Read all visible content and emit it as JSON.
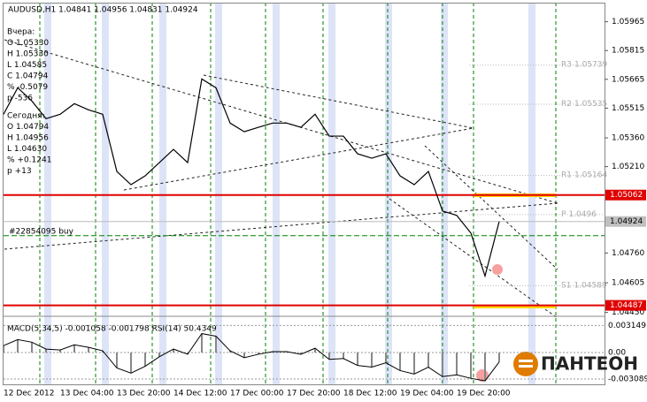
{
  "chart_data": {
    "type": "line",
    "title": "AUDUSD,H1 1.04841 1.04956 1.04831 1.04924",
    "info_yesterday": [
      "Вчера:",
      "O 1.05330",
      "H 1.05330",
      "L 1.04585",
      "C 1.04794",
      "% -0.5079",
      "p -536"
    ],
    "info_today": [
      "Сегодня:",
      "O 1.04794",
      "H 1.04956",
      "L 1.04630",
      "% +0.1241",
      "p +13"
    ],
    "categories": [
      "12 Dec 2012",
      null,
      null,
      null,
      "13 Dec 04:00",
      null,
      null,
      null,
      "13 Dec 20:00",
      null,
      null,
      null,
      "14 Dec 12:00",
      null,
      null,
      null,
      "17 Dec 00:00",
      null,
      null,
      null,
      "17 Dec 20:00",
      null,
      null,
      null,
      "18 Dec 12:00",
      null,
      null,
      null,
      "19 Dec 04:00",
      null,
      null,
      null,
      "19 Dec 20:00",
      null,
      null,
      null
    ],
    "series": [
      {
        "name": "AUDUSD",
        "color": "#000000",
        "values": [
          1.05483,
          1.05621,
          1.05552,
          1.0546,
          1.05483,
          1.05538,
          1.05506,
          1.05483,
          1.05185,
          1.05116,
          1.05162,
          1.05231,
          1.053,
          1.05231,
          1.05667,
          1.05621,
          1.05437,
          1.05392,
          1.05415,
          1.05437,
          1.05437,
          1.05415,
          1.05483,
          1.05369,
          1.05369,
          1.05277,
          1.05254,
          1.05277,
          1.05162,
          1.05116,
          1.05185,
          1.04979,
          1.04956,
          1.04864,
          1.0464,
          1.04924
        ]
      }
    ],
    "ylim": [
      1.0443,
      1.0606
    ],
    "yticks": [
      1.05965,
      1.05815,
      1.05665,
      1.05515,
      {
        "value": 1.0536,
        "label": "1.05360"
      },
      {
        "value": 1.0521,
        "label": "1.05210"
      },
      {
        "value": 1.0476,
        "label": "1.04760"
      },
      1.04605,
      {
        "value": 1.0445,
        "label": "1.04450"
      }
    ],
    "levels": [
      {
        "value": 1.05062,
        "color": "#e00000"
      },
      {
        "value": 1.04487,
        "color": "#e00000"
      }
    ],
    "last_price": 1.04924,
    "pivots": [
      {
        "name": "R3",
        "value": 1.05739
      },
      {
        "name": "R2",
        "value": 1.05535
      },
      {
        "name": "R1",
        "value": 1.05164
      },
      {
        "name": "P",
        "value": 1.0496
      },
      {
        "name": "S1",
        "value": 1.04589
      }
    ],
    "order": {
      "label": "#22854095 buy",
      "value": 1.0485
    },
    "indicator": {
      "label": "MACD(5,34,5) -0.001058 -0.001798 RSI(14) 50.4349",
      "values": [
        0.0008,
        0.0015,
        0.0012,
        0.0004,
        0.0003,
        0.0009,
        0.0006,
        0.0002,
        -0.0018,
        -0.0024,
        -0.0016,
        -0.0005,
        0.0004,
        -0.0002,
        0.0022,
        0.0019,
        0.0002,
        -0.0006,
        -0.0002,
        0.0001,
        0.0001,
        -0.0002,
        0.0005,
        -0.0008,
        -0.0007,
        -0.0015,
        -0.0017,
        -0.0012,
        -0.0021,
        -0.0025,
        -0.0017,
        -0.0028,
        -0.0026,
        -0.003,
        -0.0033,
        -0.0011
      ],
      "ylim": [
        -0.0037,
        0.0038
      ],
      "yticks": [
        0.003149,
        {
          "value": 0,
          "label": "0.00"
        },
        -0.003089
      ]
    },
    "logo": "ПАНТЕОН"
  }
}
